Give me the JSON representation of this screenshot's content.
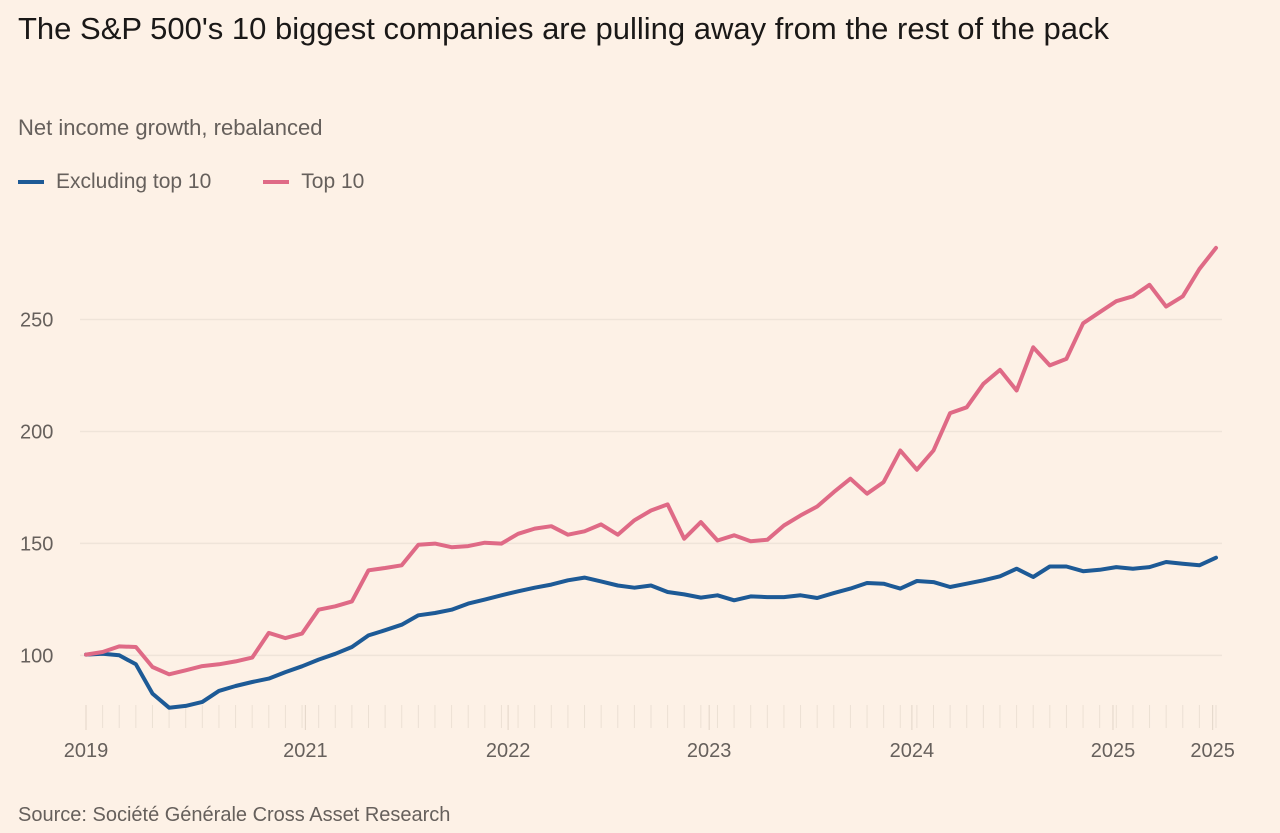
{
  "chart_data": {
    "type": "line",
    "title": "The S&P 500's 10 biggest companies are pulling away from the rest of the pack",
    "subtitle": "Net income growth, rebalanced",
    "source": "Source: Société Générale Cross Asset Research",
    "ylim": [
      72,
      290
    ],
    "yticks": [
      100,
      150,
      200,
      250
    ],
    "grid": true,
    "legend_placement": "top-left",
    "xticks": [
      {
        "label": "2019",
        "at": 0
      },
      {
        "label": "2021",
        "at": 13.2
      },
      {
        "label": "2022",
        "at": 25.4
      },
      {
        "label": "2023",
        "at": 37.5
      },
      {
        "label": "2024",
        "at": 49.7
      },
      {
        "label": "2025",
        "at": 61.8
      },
      {
        "label": "2025",
        "at": 67.8
      }
    ],
    "series": [
      {
        "name": "Excluding top 10",
        "color": "#1d5a96",
        "values": [
          100.3,
          100.7,
          100,
          96,
          82.9,
          76.6,
          77.4,
          79.2,
          84.1,
          86.3,
          88.1,
          89.6,
          92.5,
          95.1,
          98.1,
          100.7,
          103.7,
          108.9,
          111.2,
          113.7,
          117.9,
          118.9,
          120.4,
          123.1,
          124.9,
          126.8,
          128.6,
          130.2,
          131.6,
          133.5,
          134.7,
          133,
          131.2,
          130.2,
          131.2,
          128.3,
          127.2,
          125.8,
          126.8,
          124.6,
          126.3,
          126,
          126,
          126.8,
          125.6,
          127.8,
          129.8,
          132.3,
          132,
          129.8,
          133.2,
          132.7,
          130.5,
          132,
          133.5,
          135.3,
          138.7,
          135,
          139.7,
          139.7,
          137.6,
          138.2,
          139.4,
          138.7,
          139.4,
          141.7,
          140.9,
          140.2,
          143.6
        ]
      },
      {
        "name": "Top 10",
        "color": "#df6a86",
        "values": [
          100.3,
          101.5,
          104,
          103.7,
          94.8,
          91.5,
          93.3,
          95.2,
          96,
          97.3,
          99,
          110,
          107.7,
          109.7,
          120.4,
          121.9,
          124.1,
          138,
          139,
          140.2,
          149.4,
          149.9,
          148.3,
          148.8,
          150.3,
          149.9,
          154.3,
          156.6,
          157.7,
          153.9,
          155.4,
          158.5,
          153.9,
          160.3,
          164.7,
          167.4,
          152.1,
          159.5,
          151.3,
          153.6,
          151,
          151.6,
          158,
          162.5,
          166.5,
          172.9,
          178.9,
          172.2,
          177.4,
          191.5,
          182.9,
          191.5,
          208.2,
          210.8,
          221.3,
          227.5,
          218.3,
          237.6,
          229.5,
          232.4,
          248.3,
          253.3,
          258.2,
          260.4,
          265.5,
          255.8,
          260.4,
          272.6,
          282
        ]
      }
    ]
  }
}
